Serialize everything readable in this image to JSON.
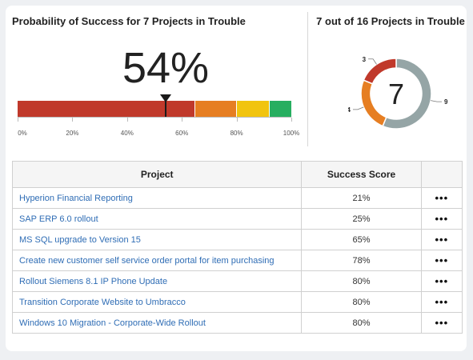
{
  "left_title": "Probability of Success for 7 Projects in Trouble",
  "right_title": "7 out of 16 Projects in Trouble",
  "gauge": {
    "value_label": "54%",
    "value": 54,
    "segments": [
      {
        "from": 0,
        "to": 65,
        "color": "#c0392b"
      },
      {
        "from": 65,
        "to": 80,
        "color": "#e67e22"
      },
      {
        "from": 80,
        "to": 92,
        "color": "#f1c40f"
      },
      {
        "from": 92,
        "to": 100,
        "color": "#27ae60"
      }
    ],
    "ticks": [
      "0%",
      "20%",
      "40%",
      "60%",
      "80%",
      "100%"
    ]
  },
  "donut": {
    "center_label": "7",
    "slices": [
      {
        "value": 9,
        "label": "9",
        "color": "#95a5a6"
      },
      {
        "value": 4,
        "label": "4",
        "color": "#e67e22"
      },
      {
        "value": 3,
        "label": "3",
        "color": "#c0392b"
      }
    ]
  },
  "table": {
    "headers": {
      "project": "Project",
      "score": "Success Score"
    },
    "menu_glyph": "•••",
    "rows": [
      {
        "project": "Hyperion Financial Reporting",
        "score": "21%"
      },
      {
        "project": "SAP ERP 6.0 rollout",
        "score": "25%"
      },
      {
        "project": "MS SQL upgrade to Version 15",
        "score": "65%"
      },
      {
        "project": "Create new customer self service order portal for item purchasing",
        "score": "78%"
      },
      {
        "project": "Rollout Siemens 8.1 IP Phone Update",
        "score": "80%"
      },
      {
        "project": "Transition Corporate Website to Umbracco",
        "score": "80%"
      },
      {
        "project": "Windows 10 Migration - Corporate-Wide Rollout",
        "score": "80%"
      }
    ]
  }
}
